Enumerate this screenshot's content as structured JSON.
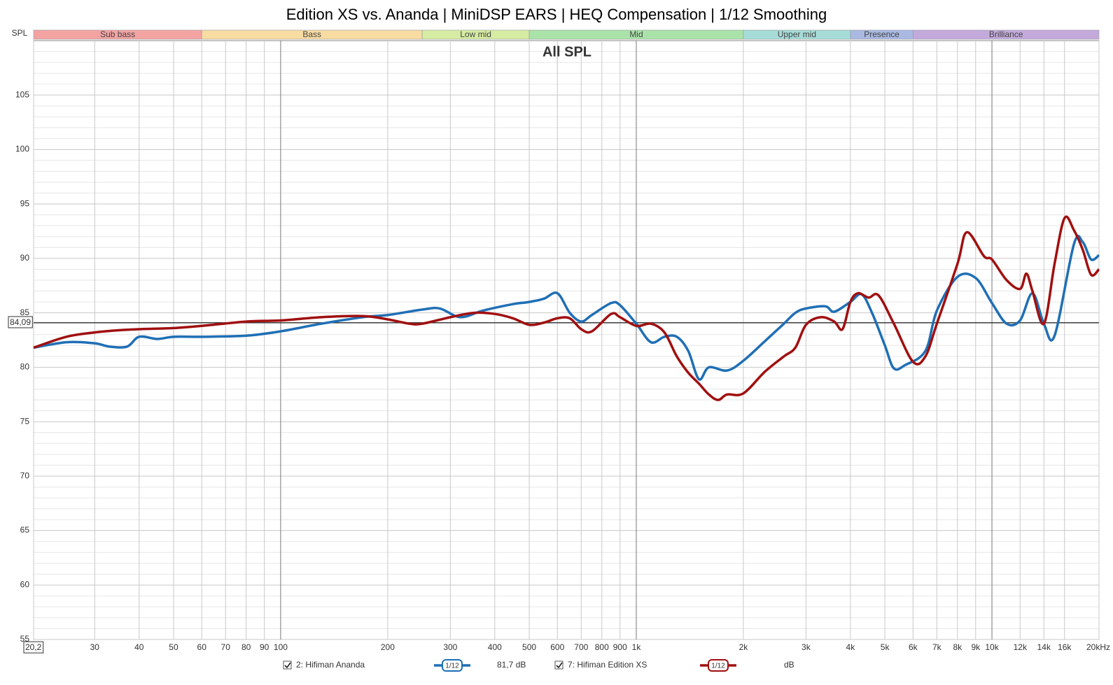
{
  "chart_data": {
    "type": "line",
    "title": "Edition XS vs. Ananda | MiniDSP EARS | HEQ Compensation | 1/12 Smoothing",
    "subtitle": "All SPL",
    "y_label": "SPL",
    "log_x": true,
    "grid": true,
    "xlim": [
      20.2,
      20000
    ],
    "ylim": [
      55,
      110
    ],
    "yticks": [
      55,
      60,
      65,
      70,
      75,
      80,
      85,
      90,
      95,
      100,
      105
    ],
    "yminorticks": [
      56,
      57,
      58,
      59,
      61,
      62,
      63,
      64,
      66,
      67,
      68,
      69,
      71,
      72,
      73,
      74,
      76,
      77,
      78,
      79,
      81,
      82,
      83,
      84,
      86,
      87,
      88,
      89,
      91,
      92,
      93,
      94,
      96,
      97,
      98,
      99,
      101,
      102,
      103,
      104,
      106,
      107,
      108,
      109
    ],
    "xticks": [
      {
        "value": 20.2,
        "label": "20,2"
      },
      30,
      40,
      50,
      60,
      70,
      80,
      90,
      100,
      200,
      300,
      400,
      500,
      600,
      700,
      800,
      900,
      {
        "value": 1000,
        "label": "1k"
      },
      {
        "value": 2000,
        "label": "2k"
      },
      {
        "value": 3000,
        "label": "3k"
      },
      {
        "value": 4000,
        "label": "4k"
      },
      {
        "value": 5000,
        "label": "5k"
      },
      {
        "value": 6000,
        "label": "6k"
      },
      {
        "value": 7000,
        "label": "7k"
      },
      {
        "value": 8000,
        "label": "8k"
      },
      {
        "value": 9000,
        "label": "9k"
      },
      {
        "value": 10000,
        "label": "10k"
      },
      {
        "value": 12000,
        "label": "12k",
        "minor": true
      },
      {
        "value": 14000,
        "label": "14k",
        "minor": true
      },
      {
        "value": 16000,
        "label": "16k",
        "minor": true
      },
      {
        "value": 20000,
        "label": "20kHz"
      }
    ],
    "bands": [
      {
        "label": "Sub bass",
        "from": 20.2,
        "to": 60,
        "color": "#f4a3a3"
      },
      {
        "label": "Bass",
        "from": 60,
        "to": 250,
        "color": "#f8dca2"
      },
      {
        "label": "Low mid",
        "from": 250,
        "to": 500,
        "color": "#d6eca2"
      },
      {
        "label": "Mid",
        "from": 500,
        "to": 2000,
        "color": "#a9e3a9"
      },
      {
        "label": "Upper mid",
        "from": 2000,
        "to": 4000,
        "color": "#a6dcd8"
      },
      {
        "label": "Presence",
        "from": 4000,
        "to": 6000,
        "color": "#a9b9e2"
      },
      {
        "label": "Brilliance",
        "from": 6000,
        "to": 20000,
        "color": "#c3aadb"
      }
    ],
    "reference": {
      "value": 84.09,
      "label": "84,09"
    },
    "series": [
      {
        "name": "2: Hifiman Ananda",
        "color": "#1f6fb5",
        "smoothing": "1/12",
        "legend_value": "81,7 dB",
        "x": [
          20.2,
          25,
          30,
          33,
          37,
          40,
          45,
          50,
          60,
          80,
          100,
          130,
          170,
          200,
          250,
          280,
          320,
          370,
          450,
          500,
          550,
          600,
          650,
          700,
          750,
          850,
          900,
          1000,
          1100,
          1200,
          1300,
          1400,
          1500,
          1600,
          1800,
          2000,
          2300,
          2600,
          2800,
          3000,
          3400,
          3600,
          4000,
          4300,
          4600,
          5000,
          5300,
          5700,
          6500,
          7000,
          8000,
          9000,
          10000,
          11000,
          12000,
          13000,
          14000,
          15000,
          17000,
          18000,
          19000,
          20000
        ],
        "values": [
          81.8,
          82.3,
          82.2,
          81.9,
          81.9,
          82.8,
          82.6,
          82.8,
          82.8,
          82.9,
          83.3,
          84.0,
          84.6,
          84.8,
          85.3,
          85.4,
          84.6,
          85.2,
          85.8,
          86.0,
          86.3,
          86.8,
          85.0,
          84.2,
          84.8,
          85.9,
          85.7,
          84.0,
          82.3,
          82.8,
          82.8,
          81.5,
          78.9,
          80.0,
          79.7,
          80.6,
          82.4,
          84.0,
          85.0,
          85.4,
          85.6,
          85.1,
          86.0,
          86.7,
          85.0,
          82.0,
          79.9,
          80.2,
          81.5,
          85.2,
          88.3,
          88.2,
          85.9,
          84.0,
          84.3,
          86.8,
          84.0,
          82.9,
          91.3,
          91.5,
          89.9,
          90.3
        ]
      },
      {
        "name": "7: Hifiman Edition XS",
        "color": "#a01010",
        "smoothing": "1/12",
        "legend_value": "dB",
        "x": [
          20.2,
          25,
          30,
          35,
          40,
          50,
          60,
          80,
          100,
          130,
          170,
          200,
          230,
          250,
          300,
          350,
          400,
          450,
          500,
          550,
          600,
          650,
          700,
          750,
          850,
          900,
          1000,
          1100,
          1200,
          1300,
          1400,
          1500,
          1600,
          1700,
          1800,
          2000,
          2300,
          2600,
          2800,
          3000,
          3300,
          3600,
          3800,
          4000,
          4200,
          4500,
          4800,
          5300,
          6000,
          6500,
          7000,
          8000,
          8500,
          9500,
          10000,
          11000,
          12000,
          12500,
          13000,
          14000,
          15000,
          16000,
          17000,
          18000,
          19000,
          20000
        ],
        "values": [
          81.8,
          82.8,
          83.2,
          83.4,
          83.5,
          83.6,
          83.8,
          84.2,
          84.3,
          84.6,
          84.7,
          84.4,
          84.0,
          84.0,
          84.6,
          85.0,
          84.9,
          84.5,
          83.9,
          84.1,
          84.5,
          84.5,
          83.5,
          83.3,
          84.9,
          84.6,
          83.8,
          84.0,
          83.2,
          81.0,
          79.5,
          78.5,
          77.5,
          77.0,
          77.5,
          77.6,
          79.6,
          81.0,
          81.8,
          83.9,
          84.6,
          84.2,
          83.5,
          86.0,
          86.8,
          86.4,
          86.6,
          84.0,
          80.5,
          81.0,
          84.0,
          89.5,
          92.4,
          90.2,
          89.9,
          88.0,
          87.2,
          88.6,
          87.0,
          84.0,
          89.5,
          93.7,
          92.6,
          90.8,
          88.5,
          89.0
        ]
      }
    ]
  }
}
